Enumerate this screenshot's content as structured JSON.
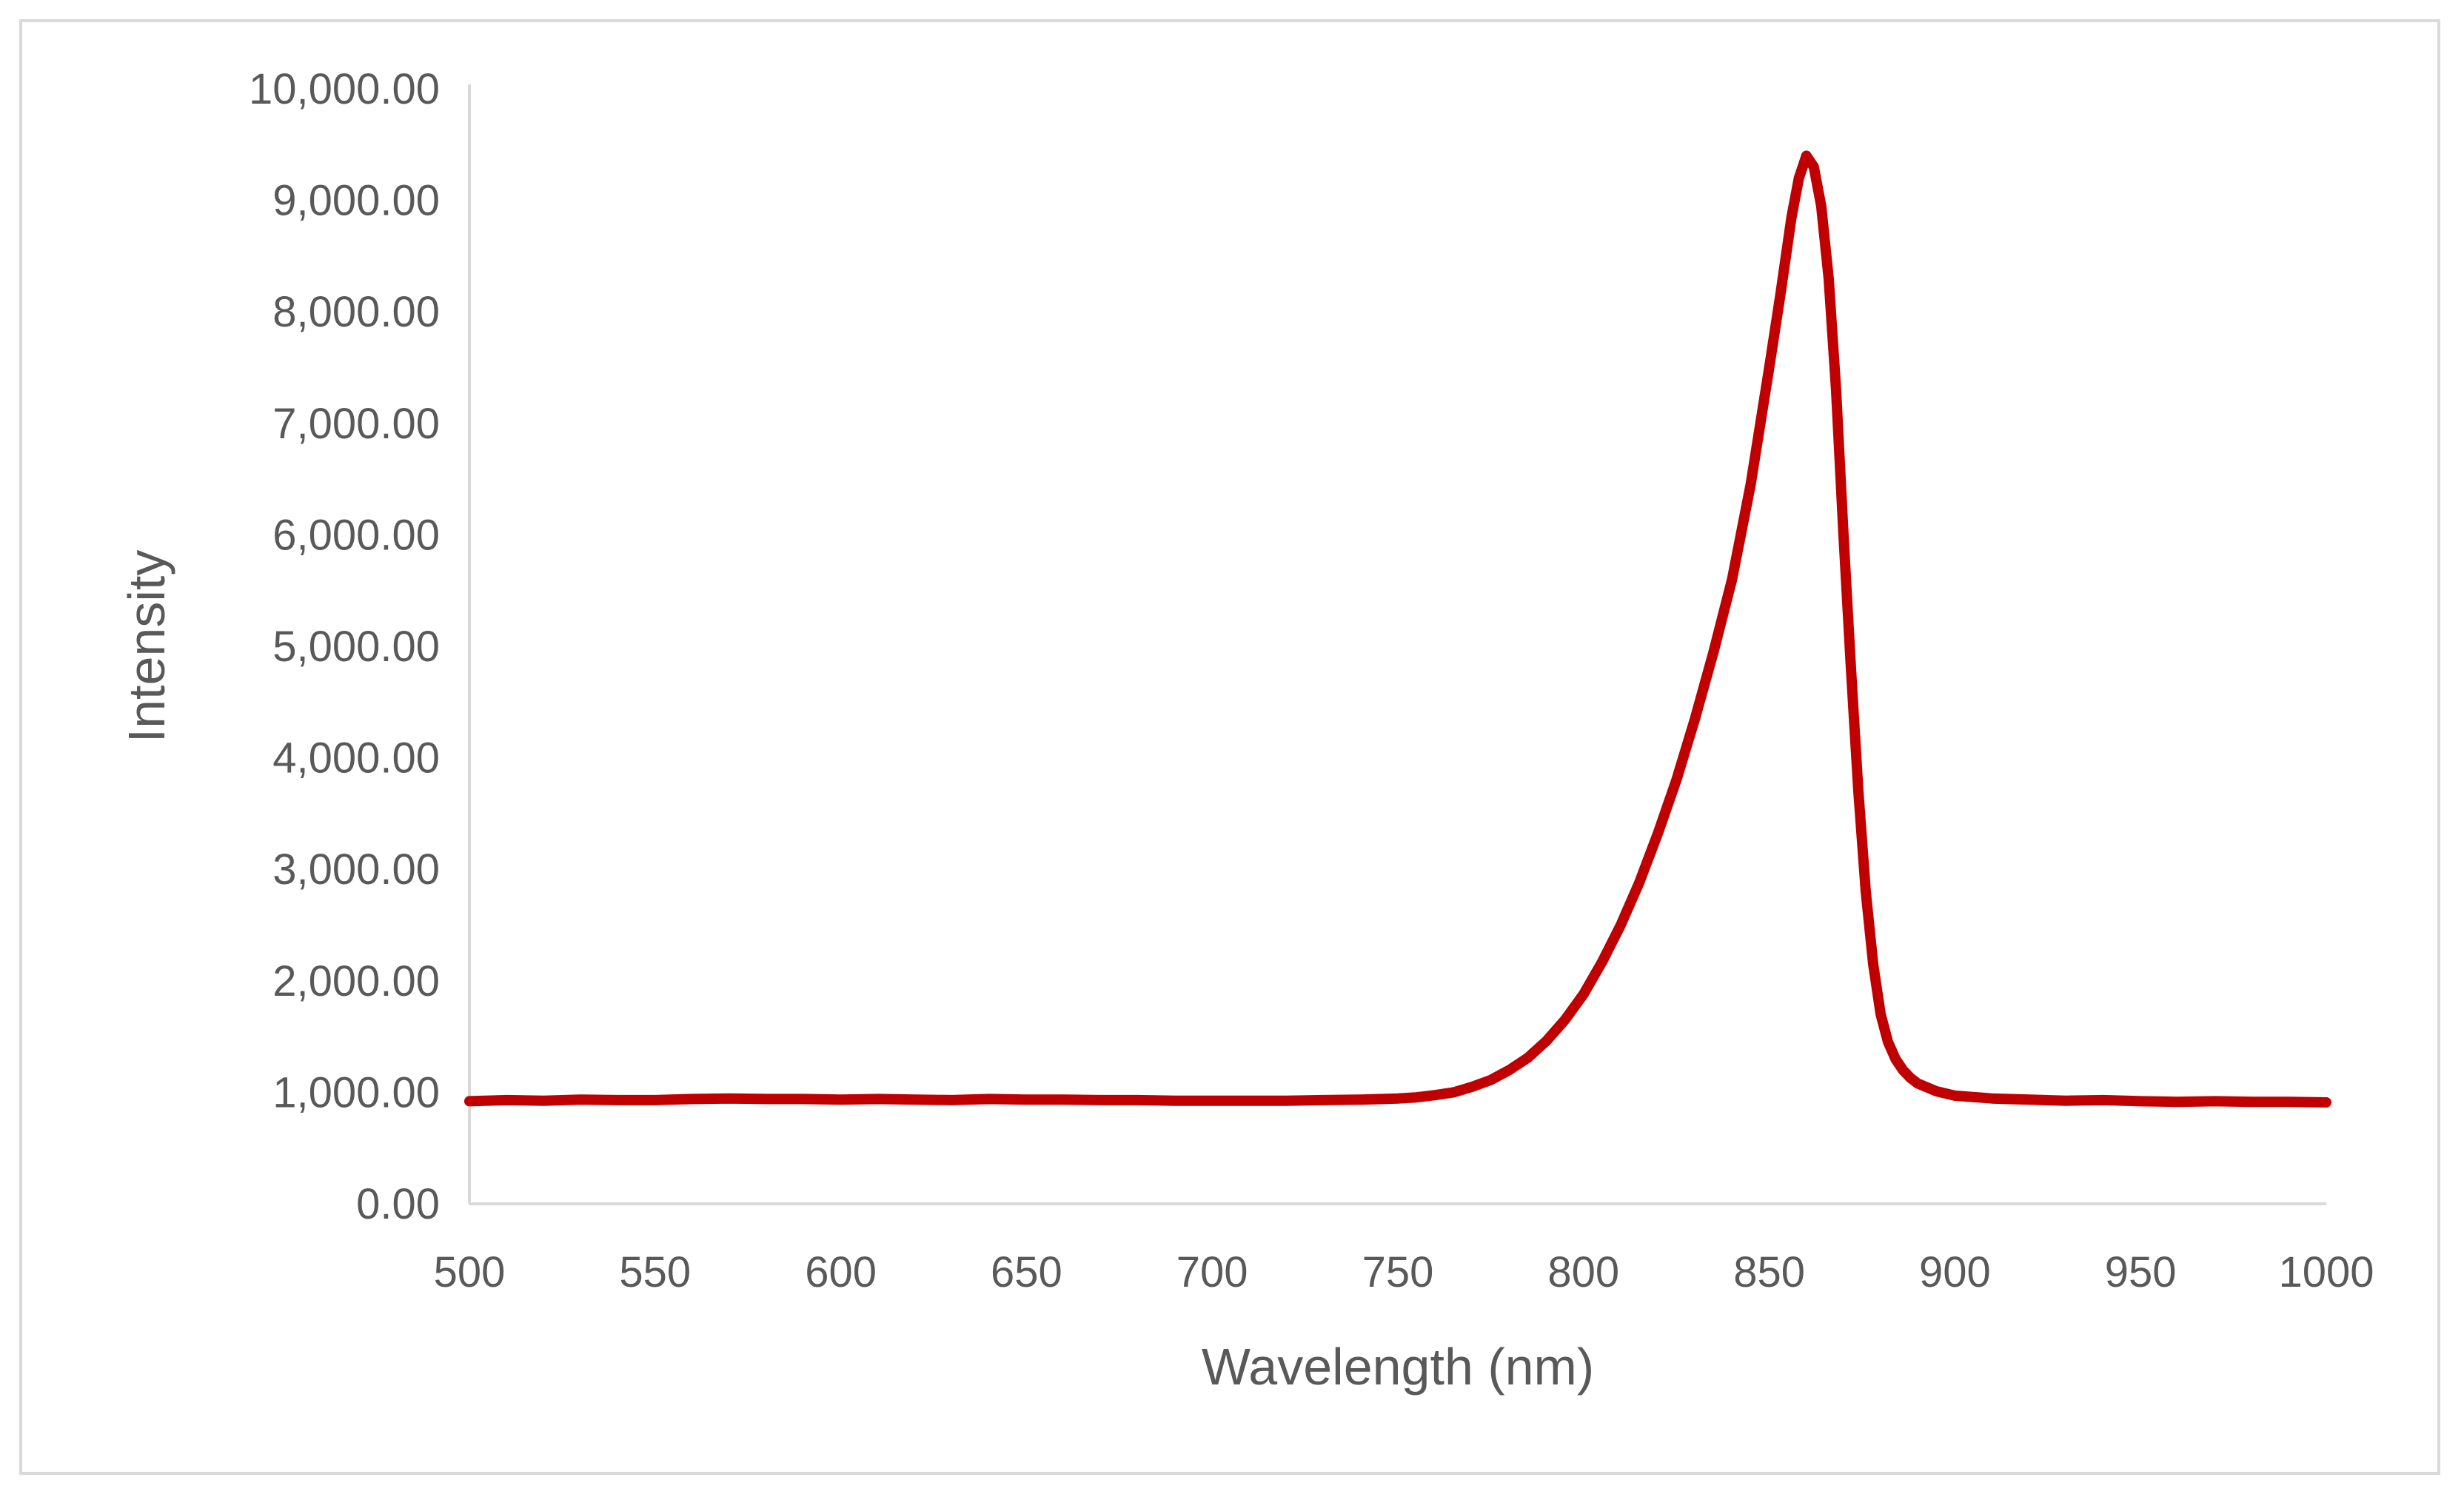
{
  "chart_data": {
    "type": "line",
    "title": "",
    "xlabel": "Wavelength (nm)",
    "ylabel": "Intensity",
    "xlim": [
      500,
      1000
    ],
    "ylim": [
      0,
      10000
    ],
    "x_ticks": [
      500,
      550,
      600,
      650,
      700,
      750,
      800,
      850,
      900,
      950,
      1000
    ],
    "x_tick_labels": [
      "500",
      "550",
      "600",
      "650",
      "700",
      "750",
      "800",
      "850",
      "900",
      "950",
      "1000"
    ],
    "y_ticks": [
      0,
      1000,
      2000,
      3000,
      4000,
      5000,
      6000,
      7000,
      8000,
      9000,
      10000
    ],
    "y_tick_labels": [
      "0.00",
      "1,000.00",
      "2,000.00",
      "3,000.00",
      "4,000.00",
      "5,000.00",
      "6,000.00",
      "7,000.00",
      "8,000.00",
      "9,000.00",
      "10,000.00"
    ],
    "grid": false,
    "legend": "none",
    "series": [
      {
        "name": "Intensity",
        "color": "#c00000",
        "x": [
          500,
          510,
          520,
          530,
          540,
          550,
          560,
          570,
          580,
          590,
          600,
          610,
          620,
          630,
          640,
          650,
          660,
          670,
          680,
          690,
          700,
          710,
          720,
          730,
          740,
          750,
          755,
          760,
          765,
          770,
          775,
          780,
          785,
          790,
          795,
          800,
          805,
          810,
          815,
          820,
          825,
          830,
          835,
          840,
          845,
          850,
          853,
          856,
          858,
          860,
          862,
          864,
          866,
          868,
          870,
          872,
          874,
          876,
          878,
          880,
          882,
          884,
          886,
          888,
          890,
          895,
          900,
          910,
          920,
          930,
          940,
          950,
          960,
          970,
          980,
          990,
          1000
        ],
        "values": [
          920,
          930,
          925,
          935,
          930,
          930,
          940,
          945,
          940,
          940,
          935,
          940,
          935,
          930,
          940,
          935,
          935,
          930,
          930,
          925,
          925,
          925,
          925,
          930,
          935,
          945,
          955,
          975,
          1000,
          1050,
          1110,
          1200,
          1310,
          1460,
          1650,
          1880,
          2170,
          2500,
          2880,
          3320,
          3800,
          4350,
          4950,
          5600,
          6450,
          7500,
          8150,
          8850,
          9200,
          9400,
          9300,
          8950,
          8300,
          7300,
          6000,
          4800,
          3700,
          2800,
          2150,
          1700,
          1450,
          1300,
          1200,
          1130,
          1080,
          1010,
          970,
          945,
          935,
          925,
          930,
          920,
          915,
          920,
          915,
          915,
          910
        ]
      }
    ]
  }
}
